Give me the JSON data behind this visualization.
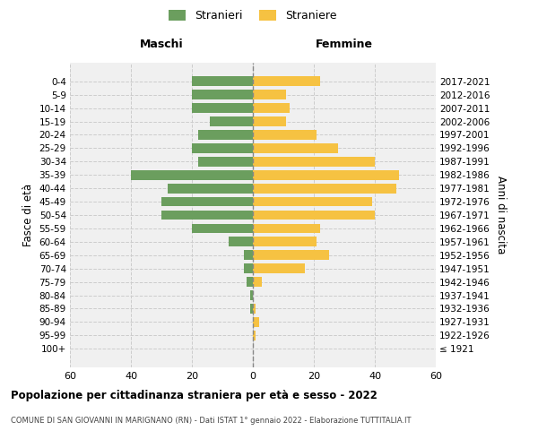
{
  "age_groups": [
    "100+",
    "95-99",
    "90-94",
    "85-89",
    "80-84",
    "75-79",
    "70-74",
    "65-69",
    "60-64",
    "55-59",
    "50-54",
    "45-49",
    "40-44",
    "35-39",
    "30-34",
    "25-29",
    "20-24",
    "15-19",
    "10-14",
    "5-9",
    "0-4"
  ],
  "birth_years": [
    "≤ 1921",
    "1922-1926",
    "1927-1931",
    "1932-1936",
    "1937-1941",
    "1942-1946",
    "1947-1951",
    "1952-1956",
    "1957-1961",
    "1962-1966",
    "1967-1971",
    "1972-1976",
    "1977-1981",
    "1982-1986",
    "1987-1991",
    "1992-1996",
    "1997-2001",
    "2002-2006",
    "2007-2011",
    "2012-2016",
    "2017-2021"
  ],
  "maschi": [
    0,
    0,
    0,
    1,
    1,
    2,
    3,
    3,
    8,
    20,
    30,
    30,
    28,
    40,
    18,
    20,
    18,
    14,
    20,
    20,
    20
  ],
  "femmine": [
    0,
    1,
    2,
    1,
    0,
    3,
    17,
    25,
    21,
    22,
    40,
    39,
    47,
    48,
    40,
    28,
    21,
    11,
    12,
    11,
    22
  ],
  "male_color": "#6b9e5e",
  "female_color": "#f6c242",
  "bg_color": "#f0f0f0",
  "title": "Popolazione per cittadinanza straniera per età e sesso - 2022",
  "subtitle": "COMUNE DI SAN GIOVANNI IN MARIGNANO (RN) - Dati ISTAT 1° gennaio 2022 - Elaborazione TUTTITALIA.IT",
  "ylabel_left": "Fasce di età",
  "ylabel_right": "Anni di nascita",
  "header_left": "Maschi",
  "header_right": "Femmine",
  "legend_m": "Stranieri",
  "legend_f": "Straniere",
  "xlim": 60,
  "grid_color": "#cccccc"
}
